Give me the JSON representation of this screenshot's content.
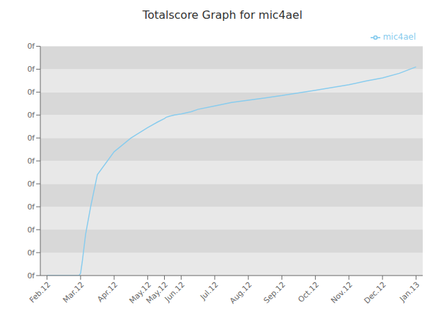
{
  "chart_data": {
    "type": "line",
    "title": "Totalscore Graph for mic4ael",
    "x": [
      0.0,
      0.95,
      0.98,
      1.0,
      1.05,
      1.15,
      1.3,
      1.5,
      2.0,
      2.5,
      3.0,
      3.3,
      3.5,
      3.55,
      3.65,
      3.8,
      4.0,
      4.3,
      4.5,
      5.0,
      5.5,
      6.0,
      6.5,
      7.0,
      7.5,
      8.0,
      8.5,
      9.0,
      9.5,
      10.0,
      10.5,
      11.0
    ],
    "series": [
      {
        "name": "mic4ael",
        "color": "#88ccee",
        "values": [
          0.0,
          0.0,
          0.005,
          0.01,
          0.06,
          0.18,
          0.3,
          0.44,
          0.54,
          0.6,
          0.645,
          0.67,
          0.685,
          0.69,
          0.695,
          0.7,
          0.705,
          0.715,
          0.725,
          0.74,
          0.755,
          0.765,
          0.775,
          0.785,
          0.797,
          0.808,
          0.82,
          0.832,
          0.848,
          0.862,
          0.882,
          0.91
        ]
      }
    ],
    "xlim": [
      -0.2,
      11.2
    ],
    "xticks": [
      {
        "value": 0,
        "label": "Feb.12"
      },
      {
        "value": 1,
        "label": "Mar.12"
      },
      {
        "value": 2,
        "label": "Apr.12"
      },
      {
        "value": 3,
        "label": "May.12"
      },
      {
        "value": 3.5,
        "label": "May.12"
      },
      {
        "value": 4,
        "label": "Jun.12"
      },
      {
        "value": 5,
        "label": "Jul.12"
      },
      {
        "value": 6,
        "label": "Aug.12"
      },
      {
        "value": 7,
        "label": "Sep.12"
      },
      {
        "value": 8,
        "label": "Oct.12"
      },
      {
        "value": 9,
        "label": "Nov.12"
      },
      {
        "value": 10,
        "label": "Dec.12"
      },
      {
        "value": 11,
        "label": "Jan.13"
      }
    ],
    "ylim": [
      0.0,
      1.0
    ],
    "yticks": [
      {
        "value": 0.0,
        "label": "0f"
      },
      {
        "value": 0.1,
        "label": "0f"
      },
      {
        "value": 0.2,
        "label": "0f"
      },
      {
        "value": 0.3,
        "label": "0f"
      },
      {
        "value": 0.4,
        "label": "0f"
      },
      {
        "value": 0.5,
        "label": "0f"
      },
      {
        "value": 0.6,
        "label": "0f"
      },
      {
        "value": 0.7,
        "label": "0f"
      },
      {
        "value": 0.8,
        "label": "0f"
      },
      {
        "value": 0.9,
        "label": "0f"
      },
      {
        "value": 1.0,
        "label": "0f"
      }
    ],
    "grid": false,
    "legend": "upper right"
  }
}
